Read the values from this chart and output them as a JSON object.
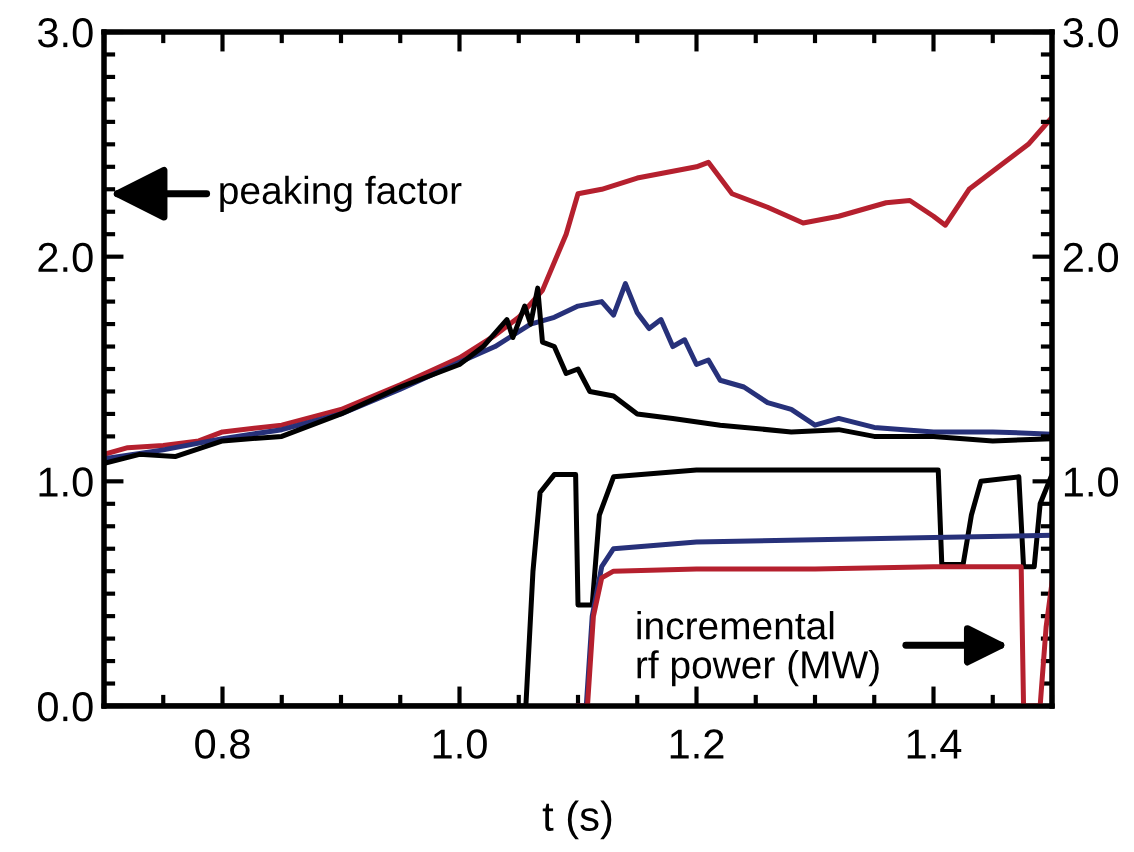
{
  "chart_data": {
    "type": "line",
    "xlabel": "t (s)",
    "xlim": [
      0.7,
      1.5
    ],
    "xticks": [
      0.8,
      {
        "value": 1.0,
        "label": "1.0"
      },
      1.2,
      1.4
    ],
    "ylim": [
      0,
      3
    ],
    "yticks": [
      {
        "value": 0,
        "label": "0.0"
      },
      {
        "value": 1,
        "label": "1.0"
      },
      {
        "value": 2,
        "label": "2.0"
      },
      {
        "value": 3,
        "label": "3.0"
      }
    ],
    "y2lim": [
      0,
      3
    ],
    "y2ticks": [
      {
        "value": 0,
        "label": null
      },
      {
        "value": 1,
        "label": "1.0"
      },
      {
        "value": 2,
        "label": "2.0"
      },
      {
        "value": 3,
        "label": "3.0"
      }
    ],
    "grid": false,
    "legend": false,
    "marker": "none",
    "line_style": "solid",
    "annotations": [
      "peaking factor",
      "incremental\nrf power (MW)"
    ],
    "series": [
      {
        "color": "#b5202e",
        "x": [
          0.7,
          0.72,
          0.75,
          0.78,
          0.8,
          0.85,
          0.9,
          0.95,
          1.0,
          1.03,
          1.05,
          1.07,
          1.09,
          1.1,
          1.12,
          1.15,
          1.18,
          1.2,
          1.21,
          1.23,
          1.26,
          1.29,
          1.32,
          1.36,
          1.38,
          1.4,
          1.41,
          1.43,
          1.46,
          1.48,
          1.5
        ],
        "values": [
          1.12,
          1.15,
          1.16,
          1.18,
          1.22,
          1.25,
          1.32,
          1.43,
          1.55,
          1.65,
          1.73,
          1.85,
          2.1,
          2.28,
          2.3,
          2.35,
          2.38,
          2.4,
          2.42,
          2.28,
          2.22,
          2.15,
          2.18,
          2.24,
          2.25,
          2.18,
          2.14,
          2.3,
          2.42,
          2.5,
          2.62
        ]
      },
      {
        "color": "#27317a",
        "x": [
          0.7,
          0.75,
          0.8,
          0.85,
          0.9,
          0.95,
          1.0,
          1.03,
          1.06,
          1.08,
          1.1,
          1.12,
          1.13,
          1.14,
          1.15,
          1.16,
          1.17,
          1.18,
          1.19,
          1.2,
          1.21,
          1.22,
          1.24,
          1.26,
          1.28,
          1.3,
          1.32,
          1.35,
          1.4,
          1.45,
          1.5
        ],
        "values": [
          1.1,
          1.14,
          1.19,
          1.23,
          1.3,
          1.41,
          1.53,
          1.6,
          1.7,
          1.73,
          1.78,
          1.8,
          1.74,
          1.88,
          1.75,
          1.68,
          1.72,
          1.6,
          1.63,
          1.52,
          1.54,
          1.45,
          1.42,
          1.35,
          1.32,
          1.25,
          1.28,
          1.24,
          1.22,
          1.22,
          1.21
        ]
      },
      {
        "color": "#000000",
        "x": [
          0.7,
          0.73,
          0.76,
          0.8,
          0.85,
          0.9,
          0.95,
          1.0,
          1.02,
          1.04,
          1.045,
          1.055,
          1.06,
          1.066,
          1.07,
          1.08,
          1.09,
          1.1,
          1.11,
          1.13,
          1.15,
          1.18,
          1.22,
          1.28,
          1.32,
          1.35,
          1.4,
          1.45,
          1.5
        ],
        "values": [
          1.08,
          1.12,
          1.11,
          1.18,
          1.2,
          1.3,
          1.42,
          1.52,
          1.6,
          1.72,
          1.64,
          1.78,
          1.7,
          1.86,
          1.62,
          1.6,
          1.48,
          1.5,
          1.4,
          1.38,
          1.3,
          1.28,
          1.25,
          1.22,
          1.23,
          1.2,
          1.2,
          1.18,
          1.19
        ]
      },
      {
        "color": "#000000",
        "axis": "y2",
        "x": [
          0.7,
          1.056,
          1.062,
          1.068,
          1.08,
          1.098,
          1.1,
          1.112,
          1.118,
          1.13,
          1.2,
          1.3,
          1.404,
          1.407,
          1.425,
          1.432,
          1.44,
          1.472,
          1.476,
          1.485,
          1.49,
          1.5
        ],
        "values": [
          0,
          0,
          0.6,
          0.95,
          1.03,
          1.03,
          0.45,
          0.45,
          0.85,
          1.02,
          1.05,
          1.05,
          1.05,
          0.63,
          0.63,
          0.85,
          1.0,
          1.02,
          0.62,
          0.62,
          0.9,
          1.03
        ]
      },
      {
        "color": "#27317a",
        "axis": "y2",
        "x": [
          1.1,
          1.107,
          1.112,
          1.12,
          1.13,
          1.2,
          1.3,
          1.4,
          1.5
        ],
        "values": [
          0,
          0,
          0.4,
          0.62,
          0.7,
          0.73,
          0.74,
          0.75,
          0.76
        ]
      },
      {
        "color": "#b5202e",
        "axis": "y2",
        "x": [
          1.1,
          1.108,
          1.113,
          1.12,
          1.13,
          1.2,
          1.3,
          1.4,
          1.474,
          1.476,
          1.49,
          1.495,
          1.5
        ],
        "values": [
          0,
          0,
          0.4,
          0.57,
          0.6,
          0.61,
          0.61,
          0.62,
          0.62,
          0,
          0,
          0.35,
          0.55
        ]
      }
    ]
  }
}
